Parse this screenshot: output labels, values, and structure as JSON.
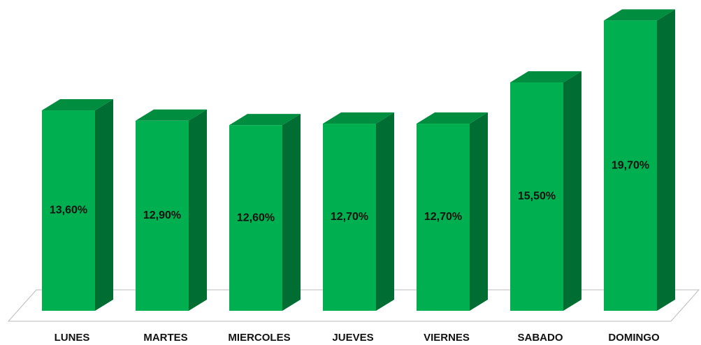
{
  "chart_data": {
    "type": "bar3d",
    "categories": [
      "LUNES",
      "MARTES",
      "MIERCOLES",
      "JUEVES",
      "VIERNES",
      "SABADO",
      "DOMINGO"
    ],
    "values": [
      13.6,
      12.9,
      12.6,
      12.7,
      12.7,
      15.5,
      19.7
    ],
    "value_labels": [
      "13,60%",
      "12,90%",
      "12,60%",
      "12,70%",
      "12,70%",
      "15,50%",
      "19,70%"
    ],
    "color": "#00b050"
  }
}
